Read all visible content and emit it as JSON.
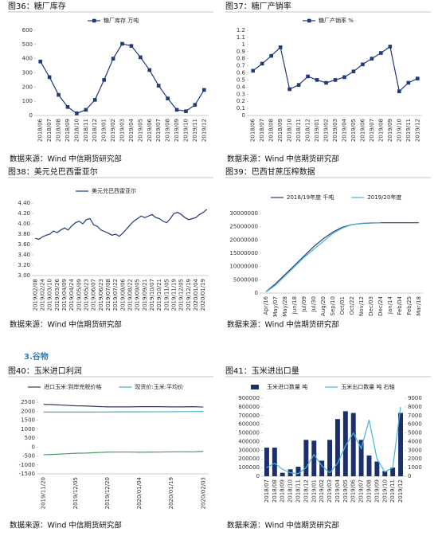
{
  "section_heading": "3.谷物",
  "sources": [
    "数据来源：Wind  中信期货研究部",
    "数据来源：Wind  中信期货研究部",
    "数据来源：Wind  中信期货研究部",
    "数据来源：Wind  中信期货研究部",
    "数据来源：Wind  中信期货研究部",
    "数据来源：Wind  中信期货研究部"
  ],
  "chart_data": [
    {
      "type": "line",
      "title": "图36：糖厂库存",
      "marker": "square",
      "categories": [
        "2018/06",
        "2018/07",
        "2018/08",
        "2018/09",
        "2018/10",
        "2018/11",
        "2018/12",
        "2019/01",
        "2019/02",
        "2019/03",
        "2019/04",
        "2019/05",
        "2019/06",
        "2019/07",
        "2019/08",
        "2019/09",
        "2019/10",
        "2019/11",
        "2019/12"
      ],
      "series": [
        {
          "name": "糖厂库存 万吨",
          "color": "#1f3a78",
          "values": [
            380,
            270,
            145,
            60,
            15,
            40,
            110,
            250,
            400,
            505,
            490,
            410,
            320,
            210,
            120,
            40,
            30,
            75,
            180
          ]
        }
      ],
      "ylim": [
        0,
        600
      ],
      "yticks": [
        0,
        100,
        200,
        300,
        400,
        500,
        600
      ],
      "legend": "top"
    },
    {
      "type": "line",
      "title": "图37：糖厂产销率",
      "marker": "square",
      "categories": [
        "2018/06",
        "2018/07",
        "2018/08",
        "2018/09",
        "2018/10",
        "2018/11",
        "2018/12",
        "2019/01",
        "2019/02",
        "2019/03",
        "2019/04",
        "2019/05",
        "2019/06",
        "2019/07",
        "2019/08",
        "2019/09",
        "2019/10",
        "2019/11",
        "2019/12"
      ],
      "series": [
        {
          "name": "糖厂产销率 %",
          "color": "#1f3a78",
          "values": [
            0.63,
            0.73,
            0.84,
            0.96,
            0.37,
            0.43,
            0.55,
            0.5,
            0.46,
            0.5,
            0.54,
            0.62,
            0.72,
            0.8,
            0.88,
            0.97,
            0.34,
            0.46,
            0.52
          ]
        }
      ],
      "ylim": [
        0,
        1.2
      ],
      "yticks": [
        0,
        0.1,
        0.2,
        0.3,
        0.4,
        0.5,
        0.6,
        0.7,
        0.8,
        0.9,
        1,
        1.1,
        1.2
      ],
      "legend": "top"
    },
    {
      "type": "line",
      "title": "图38：美元兑巴西雷亚尔",
      "categories": [
        "2019/02/08",
        null,
        "2019/02/24",
        null,
        "2019/03/10",
        null,
        "2019/03/26",
        null,
        "2019/04/09",
        null,
        "2019/04/24",
        null,
        "2019/05/09",
        null,
        "2019/05/23",
        null,
        "2019/06/07",
        null,
        "2019/06/23",
        null,
        "2019/07/08",
        null,
        "2019/07/22",
        null,
        "2019/08/06",
        null,
        "2019/08/22",
        null,
        "2019/09/05",
        null,
        "2019/09/21",
        null,
        "2019/10/07",
        null,
        "2019/10/21",
        null,
        "2019/11/05",
        null,
        "2019/11/19",
        null,
        "2019/12/05",
        null,
        "2019/12/19",
        null,
        "2020/01/04",
        null,
        "2020/01/19",
        null
      ],
      "series": [
        {
          "name": "美元兑巴西雷亚尔",
          "color": "#1f3a78",
          "values": [
            3.72,
            3.7,
            3.75,
            3.78,
            3.8,
            3.86,
            3.83,
            3.88,
            3.92,
            3.88,
            3.96,
            4.02,
            4.05,
            4.0,
            4.08,
            4.1,
            3.98,
            3.95,
            3.88,
            3.85,
            3.82,
            3.78,
            3.8,
            3.76,
            3.82,
            3.9,
            3.98,
            4.05,
            4.1,
            4.15,
            4.12,
            4.15,
            4.18,
            4.12,
            4.1,
            4.05,
            4.02,
            4.1,
            4.2,
            4.22,
            4.18,
            4.12,
            4.08,
            4.1,
            4.12,
            4.18,
            4.22,
            4.28
          ]
        }
      ],
      "ylim": [
        3.0,
        4.4
      ],
      "yticks": [
        {
          "value": 3.0,
          "label": "3.00"
        },
        {
          "value": 3.2,
          "label": "3.20"
        },
        {
          "value": 3.4,
          "label": "3.40"
        },
        {
          "value": 3.6,
          "label": "3.60"
        },
        {
          "value": 3.8,
          "label": "3.80"
        },
        {
          "value": 4.0,
          "label": "4.00"
        },
        {
          "value": 4.2,
          "label": "4.20"
        },
        {
          "value": 4.4,
          "label": "4.40"
        }
      ],
      "legend": "top"
    },
    {
      "type": "line",
      "title": "图39：巴西甘蔗压榨数据",
      "categories": [
        "Apr/16",
        "May/07",
        "May/28",
        "Jun/18",
        "Jul/09",
        "Jul/30",
        "Aug/20",
        "Sep/10",
        "Oct/01",
        "Oct/22",
        "Nov/12",
        "Dec/03",
        "Dec/24",
        "Jan/14",
        "Feb/04",
        "Feb/25",
        "Mar/18"
      ],
      "series": [
        {
          "name": "2018/19年度  千吨",
          "color": "#1f3a78",
          "values": [
            500000,
            3500000,
            7000000,
            10500000,
            14000000,
            17500000,
            20500000,
            23000000,
            24800000,
            25800000,
            26200000,
            26400000,
            26500000,
            26500000,
            26500000,
            26500000,
            26500000
          ]
        },
        {
          "name": "2019/20年度",
          "color": "#4bb4d8",
          "values": [
            400000,
            3000000,
            6500000,
            10000000,
            13500000,
            16500000,
            19500000,
            22500000,
            24500000,
            25800000,
            26300000,
            26500000,
            26500000,
            null,
            null,
            null,
            null
          ]
        }
      ],
      "ylim": [
        0,
        30000000
      ],
      "yticks": [
        0,
        5000000,
        10000000,
        15000000,
        20000000,
        25000000,
        30000000
      ],
      "legend": "top"
    },
    {
      "type": "line",
      "title": "图40：玉米进口利润",
      "categories": [
        "2019/11/20",
        null,
        null,
        "2019/12/05",
        null,
        null,
        "2019/12/20",
        null,
        null,
        "2020/01/04",
        null,
        null,
        "2020/01/19",
        null,
        null,
        "2020/02/03"
      ],
      "series": [
        {
          "name": "进口玉米:到岸完税价格",
          "color": "#333a5a",
          "values": [
            2380,
            2360,
            2330,
            2300,
            2290,
            2260,
            2240,
            2240,
            2240,
            2250,
            2250,
            2250,
            2240,
            2240,
            2250,
            2230
          ]
        },
        {
          "name": "现货价:玉米:平均价",
          "color": "#4ab0c8",
          "values": [
            1950,
            1950,
            1950,
            1950,
            1950,
            1950,
            1955,
            1960,
            1960,
            1960,
            1965,
            1970,
            1970,
            1975,
            1980,
            1985
          ]
        },
        {
          "color": "#4a9a6a",
          "values": [
            -430,
            -410,
            -380,
            -350,
            -340,
            -310,
            -285,
            -280,
            -280,
            -290,
            -285,
            -280,
            -270,
            -265,
            -270,
            -245
          ]
        }
      ],
      "ylim": [
        -1500,
        2500
      ],
      "yticks": [
        -1500,
        -1000,
        -500,
        0,
        500,
        1000,
        1500,
        2000,
        2500
      ],
      "legend": "top"
    },
    {
      "type": "combo",
      "title": "图41：玉米进出口量",
      "categories": [
        "2018/07",
        "2018/08",
        "2018/09",
        "2018/10",
        "2018/11",
        "2018/12",
        "2019/01",
        "2019/02",
        "2019/03",
        "2019/04",
        "2019/05",
        "2019/06",
        "2019/07",
        "2019/08",
        "2019/09",
        "2019/10",
        "2019/11",
        "2019/12"
      ],
      "series": [
        {
          "name": "玉米进口数量  吨",
          "type": "bar",
          "color": "#1b2f6b",
          "values": [
            330000,
            330000,
            40000,
            80000,
            110000,
            420000,
            410000,
            180000,
            420000,
            660000,
            750000,
            730000,
            420000,
            240000,
            170000,
            60000,
            100000,
            730000
          ]
        },
        {
          "name": "玉米出口数量  吨  右轴",
          "type": "line",
          "axis": "y2",
          "color": "#4bb4d8",
          "values": [
            1000,
            1500,
            800,
            400,
            300,
            1000,
            2500,
            1200,
            400,
            1500,
            3500,
            5000,
            3200,
            6500,
            2000,
            500,
            1000,
            8000
          ]
        }
      ],
      "ylim": [
        0,
        900000
      ],
      "yticks": [
        0,
        100000,
        200000,
        300000,
        400000,
        500000,
        600000,
        700000,
        800000,
        900000
      ],
      "y2lim": [
        0,
        9000
      ],
      "y2ticks": [
        0,
        1000,
        2000,
        3000,
        4000,
        5000,
        6000,
        7000,
        8000,
        9000
      ],
      "legend": "top"
    }
  ]
}
